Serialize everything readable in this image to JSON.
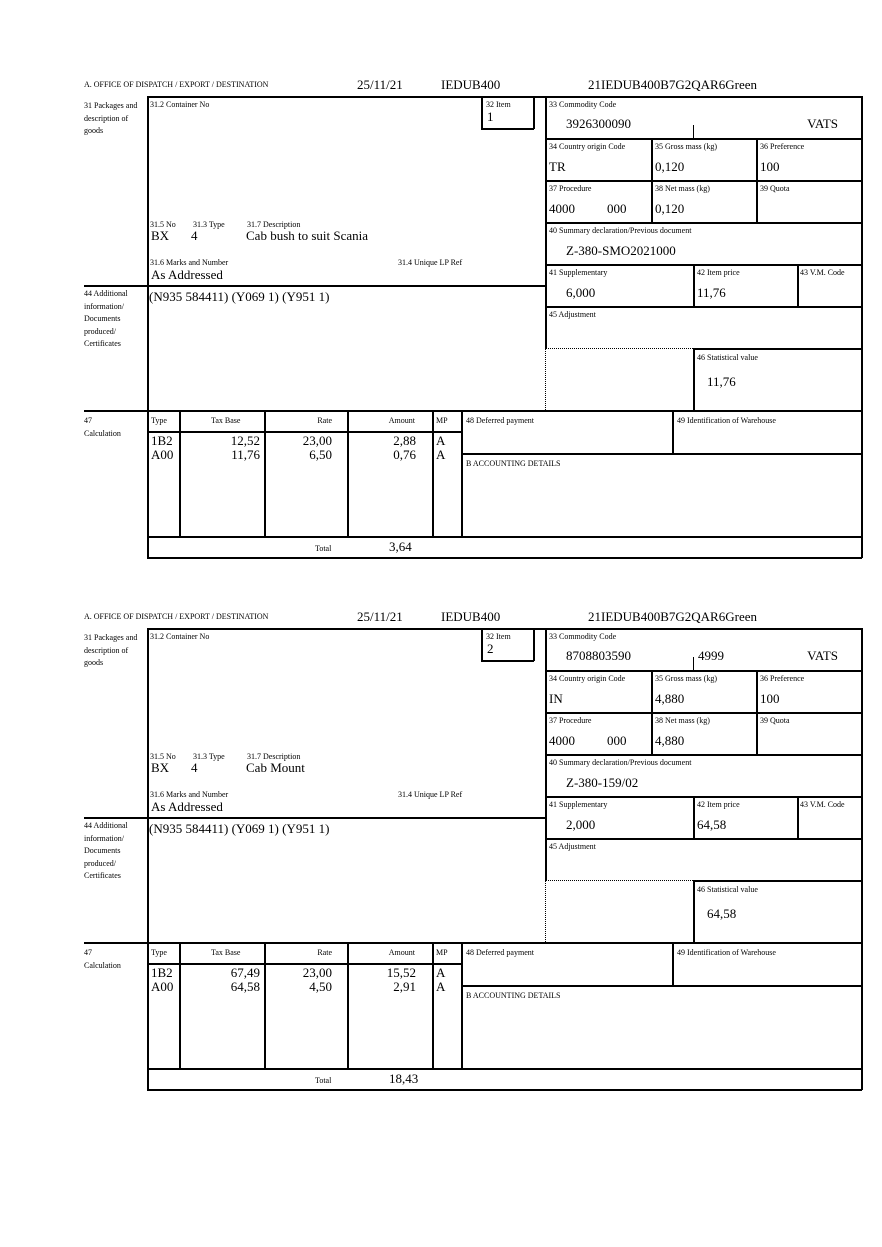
{
  "labels": {
    "office": "A. OFFICE OF DISPATCH / EXPORT / DESTINATION",
    "packages": "31 Packages and description of goods",
    "container": "31.2 Container No",
    "item": "32 Item",
    "commodity": "33 Commodity Code",
    "country": "34 Country origin Code",
    "gross": "35 Gross mass (kg)",
    "preference": "36 Preference",
    "procedure": "37 Procedure",
    "net": "38 Net mass (kg)",
    "quota": "39 Quota",
    "summary": "40 Summary declaration/Previous document",
    "supplementary": "41 Supplementary",
    "item_price": "42 Item price",
    "vm_code": "43 V.M. Code",
    "adjustment": "45 Adjustment",
    "statistical": "46 Statistical value",
    "no": "31.5 No",
    "type": "31.3 Type",
    "description": "31.7 Description",
    "marks": "31.6 Marks and Number",
    "unique_ref": "31.4 Unique LP Ref",
    "additional": "44 Additional information/ Documents produced/ Certificates",
    "calculation": "47 Calculation",
    "calc_type": "Type",
    "calc_tax_base": "Tax Base",
    "calc_rate": "Rate",
    "calc_amount": "Amount",
    "calc_mp": "MP",
    "total": "Total",
    "deferred": "48 Deferred payment",
    "warehouse": "49 Identification of Warehouse",
    "accounting": "B ACCOUNTING DETAILS"
  },
  "items": [
    {
      "date": "25/11/21",
      "office_code": "IEDUB400",
      "reference": "21IEDUB400B7G2QAR6Green",
      "item_no": "1",
      "commodity_code": "3926300090",
      "commodity_extra": "",
      "commodity_vat": "VATS",
      "country": "TR",
      "gross_mass": "0,120",
      "preference": "100",
      "procedure": "4000",
      "procedure_extra": "000",
      "net_mass": "0,120",
      "summary_doc": "Z-380-SMO2021000",
      "supplementary": "6,000",
      "item_price": "11,76",
      "statistical_value": "11,76",
      "pkg_no": "BX",
      "pkg_type": "4",
      "description": "Cab bush to suit Scania",
      "marks": "As Addressed",
      "additional_info": "(N935 584411) (Y069 1) (Y951 1)",
      "calc": [
        {
          "type": "1B2",
          "tax_base": "12,52",
          "rate": "23,00",
          "amount": "2,88",
          "mp": "A"
        },
        {
          "type": "A00",
          "tax_base": "11,76",
          "rate": "6,50",
          "amount": "0,76",
          "mp": "A"
        }
      ],
      "total": "3,64"
    },
    {
      "date": "25/11/21",
      "office_code": "IEDUB400",
      "reference": "21IEDUB400B7G2QAR6Green",
      "item_no": "2",
      "commodity_code": "8708803590",
      "commodity_extra": "4999",
      "commodity_vat": "VATS",
      "country": "IN",
      "gross_mass": "4,880",
      "preference": "100",
      "procedure": "4000",
      "procedure_extra": "000",
      "net_mass": "4,880",
      "summary_doc": "Z-380-159/02",
      "supplementary": "2,000",
      "item_price": "64,58",
      "statistical_value": "64,58",
      "pkg_no": "BX",
      "pkg_type": "4",
      "description": "Cab Mount",
      "marks": "As Addressed",
      "additional_info": "(N935 584411) (Y069 1) (Y951 1)",
      "calc": [
        {
          "type": "1B2",
          "tax_base": "67,49",
          "rate": "23,00",
          "amount": "15,52",
          "mp": "A"
        },
        {
          "type": "A00",
          "tax_base": "64,58",
          "rate": "4,50",
          "amount": "2,91",
          "mp": "A"
        }
      ],
      "total": "18,43"
    }
  ]
}
